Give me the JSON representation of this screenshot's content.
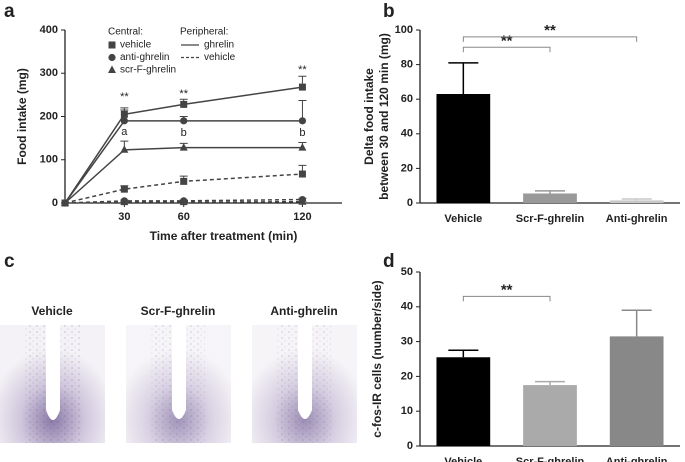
{
  "chart_data": [
    {
      "type": "line",
      "panel": "a",
      "xlabel": "Time after treatment (min)",
      "ylabel": "Food intake (mg)",
      "x": [
        0,
        30,
        60,
        120
      ],
      "xlim": [
        0,
        140
      ],
      "xticks": [
        30,
        60,
        120
      ],
      "ylim": [
        0,
        400
      ],
      "yticks": [
        0,
        100,
        200,
        300,
        400
      ],
      "legend": {
        "central_title": "Central:",
        "central": [
          "vehicle",
          "anti-ghrelin",
          "scr-F-ghrelin"
        ],
        "peripheral_title": "Peripheral:",
        "peripheral": [
          "ghrelin",
          "vehicle"
        ]
      },
      "series": [
        {
          "central": 0,
          "peripheral": 0,
          "marker": "square",
          "dash": false,
          "color": "#444",
          "values": [
            0,
            205,
            228,
            268
          ],
          "errors": [
            0,
            15,
            12,
            25
          ]
        },
        {
          "central": 1,
          "peripheral": 0,
          "marker": "circle",
          "dash": false,
          "color": "#444",
          "values": [
            0,
            190,
            190,
            190
          ],
          "errors": [
            0,
            25,
            10,
            47
          ]
        },
        {
          "central": 2,
          "peripheral": 0,
          "marker": "triangle",
          "dash": false,
          "color": "#444",
          "values": [
            0,
            123,
            128,
            128
          ],
          "errors": [
            0,
            20,
            10,
            12
          ]
        },
        {
          "central": 0,
          "peripheral": 1,
          "marker": "square",
          "dash": true,
          "color": "#444",
          "values": [
            0,
            32,
            50,
            67
          ],
          "errors": [
            0,
            8,
            12,
            20
          ]
        },
        {
          "central": 1,
          "peripheral": 1,
          "marker": "circle",
          "dash": true,
          "color": "#444",
          "values": [
            0,
            5,
            5,
            8
          ],
          "errors": [
            0,
            2,
            2,
            3
          ]
        },
        {
          "central": 2,
          "peripheral": 1,
          "marker": "triangle",
          "dash": true,
          "color": "#444",
          "values": [
            0,
            2,
            2,
            3
          ],
          "errors": [
            0,
            1,
            1,
            1
          ]
        }
      ],
      "annotations": [
        {
          "text": "**",
          "x": 30,
          "y": 245
        },
        {
          "text": "**",
          "x": 60,
          "y": 252
        },
        {
          "text": "**",
          "x": 120,
          "y": 307
        },
        {
          "text": "a",
          "x": 30,
          "y": 164
        },
        {
          "text": "b",
          "x": 60,
          "y": 162
        },
        {
          "text": "b",
          "x": 120,
          "y": 162
        }
      ]
    },
    {
      "type": "bar",
      "panel": "b",
      "ylabel": [
        "Delta food intake",
        "between 30 and 120 min (mg)"
      ],
      "categories": [
        "Vehicle",
        "Scr-F-ghrelin",
        "Anti-ghrelin"
      ],
      "values": [
        63,
        5.5,
        1.5
      ],
      "errors": [
        18,
        1.5,
        0.8
      ],
      "colors": [
        "#000000",
        "#999999",
        "#c8c8c8"
      ],
      "ylim": [
        0,
        100
      ],
      "yticks": [
        0,
        20,
        40,
        60,
        80,
        100
      ],
      "brackets": [
        {
          "text": "**",
          "y": 90,
          "from": 0,
          "to": 1
        },
        {
          "text": "**",
          "y": 96,
          "from": 0,
          "to": 2
        }
      ]
    },
    {
      "type": "bar",
      "panel": "d",
      "ylabel": [
        "c-fos-IR cells (number/side)"
      ],
      "categories": [
        "Vehicle",
        "Scr-F-ghrelin",
        "Anti-ghrelin"
      ],
      "values": [
        25.5,
        17.5,
        31.5
      ],
      "errors": [
        2,
        1,
        7.5
      ],
      "colors": [
        "#000000",
        "#aaaaaa",
        "#888888"
      ],
      "ylim": [
        0,
        50
      ],
      "yticks": [
        0,
        10,
        20,
        30,
        40,
        50
      ],
      "brackets": [
        {
          "text": "**",
          "y": 43,
          "from": 0,
          "to": 1
        }
      ]
    }
  ],
  "panel_c": {
    "panel": "c",
    "images": [
      "Vehicle",
      "Scr-F-ghrelin",
      "Anti-ghrelin"
    ]
  }
}
